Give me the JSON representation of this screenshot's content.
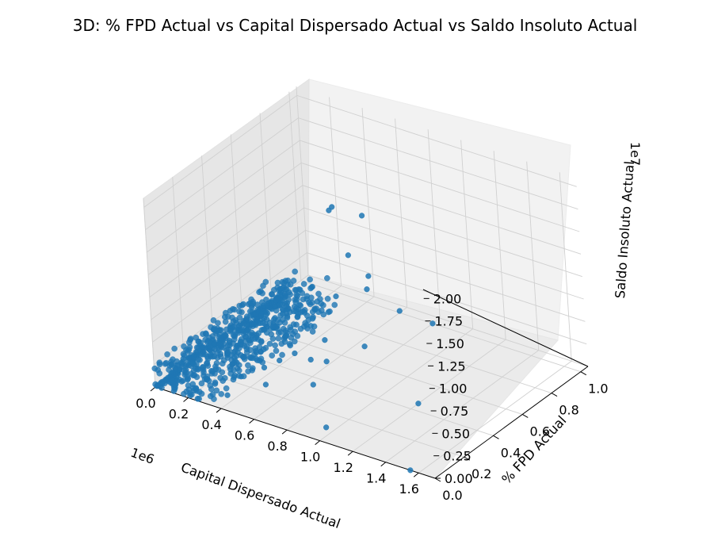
{
  "chart_data": {
    "type": "scatter3d",
    "title": "3D: % FPD Actual vs Capital Dispersado Actual vs Saldo Insoluto Actual",
    "xlabel": "Capital Dispersado Actual",
    "ylabel": "% FPD Actual",
    "zlabel": "Saldo Insoluto Actual",
    "x_offset_text": "1e6",
    "z_offset_text": "1e7",
    "x_ticks": [
      "0.0",
      "0.2",
      "0.4",
      "0.6",
      "0.8",
      "1.0",
      "1.2",
      "1.4",
      "1.6"
    ],
    "y_ticks": [
      "0.0",
      "0.2",
      "0.4",
      "0.6",
      "0.8",
      "1.0"
    ],
    "z_ticks": [
      "0.00",
      "0.25",
      "0.50",
      "0.75",
      "1.00",
      "1.25",
      "1.50",
      "1.75",
      "2.00"
    ],
    "xlim": [
      0,
      1.7
    ],
    "ylim": [
      0,
      1.05
    ],
    "zlim": [
      0,
      2.1
    ],
    "x_units": "1e6",
    "z_units": "1e7",
    "grid": true,
    "marker_color": "#1f77b4",
    "points": [
      {
        "x": 1.55,
        "y": 0.0,
        "z": 0.0
      },
      {
        "x": 1.2,
        "y": 0.45,
        "z": 0.0
      },
      {
        "x": 0.45,
        "y": 0.95,
        "z": 1.05
      },
      {
        "x": 0.2,
        "y": 1.0,
        "z": 0.9
      },
      {
        "x": 0.22,
        "y": 1.0,
        "z": 0.95
      },
      {
        "x": 0.8,
        "y": 1.0,
        "z": 0.0
      },
      {
        "x": 0.6,
        "y": 1.0,
        "z": 0.02
      },
      {
        "x": 0.35,
        "y": 0.95,
        "z": 0.55
      },
      {
        "x": 0.42,
        "y": 1.0,
        "z": 0.3
      },
      {
        "x": 0.5,
        "y": 0.9,
        "z": 0.32
      },
      {
        "x": 0.4,
        "y": 0.8,
        "z": 0.3
      },
      {
        "x": 0.3,
        "y": 0.75,
        "z": 0.4
      },
      {
        "x": 0.95,
        "y": 0.1,
        "z": 0.0
      },
      {
        "x": 0.65,
        "y": 0.35,
        "z": 0.0
      },
      {
        "x": 0.7,
        "y": 0.65,
        "z": 0.1
      },
      {
        "x": 0.55,
        "y": 0.45,
        "z": 0.1
      },
      {
        "x": 0.45,
        "y": 0.25,
        "z": 0.0
      },
      {
        "x": 0.35,
        "y": 0.1,
        "z": 0.0
      },
      {
        "x": 0.3,
        "y": 0.25,
        "z": 0.0
      },
      {
        "x": 0.5,
        "y": 0.4,
        "z": 0.2
      },
      {
        "x": 0.6,
        "y": 0.5,
        "z": 0.05
      },
      {
        "x": 0.55,
        "y": 0.55,
        "z": 0.2
      },
      {
        "x": 0.4,
        "y": 0.3,
        "z": 0.1
      },
      {
        "x": 0.45,
        "y": 0.35,
        "z": 0.15
      }
    ],
    "cluster": {
      "x_max": 0.35,
      "y_max": 0.9,
      "z_max": 0.45,
      "count": 700
    }
  }
}
